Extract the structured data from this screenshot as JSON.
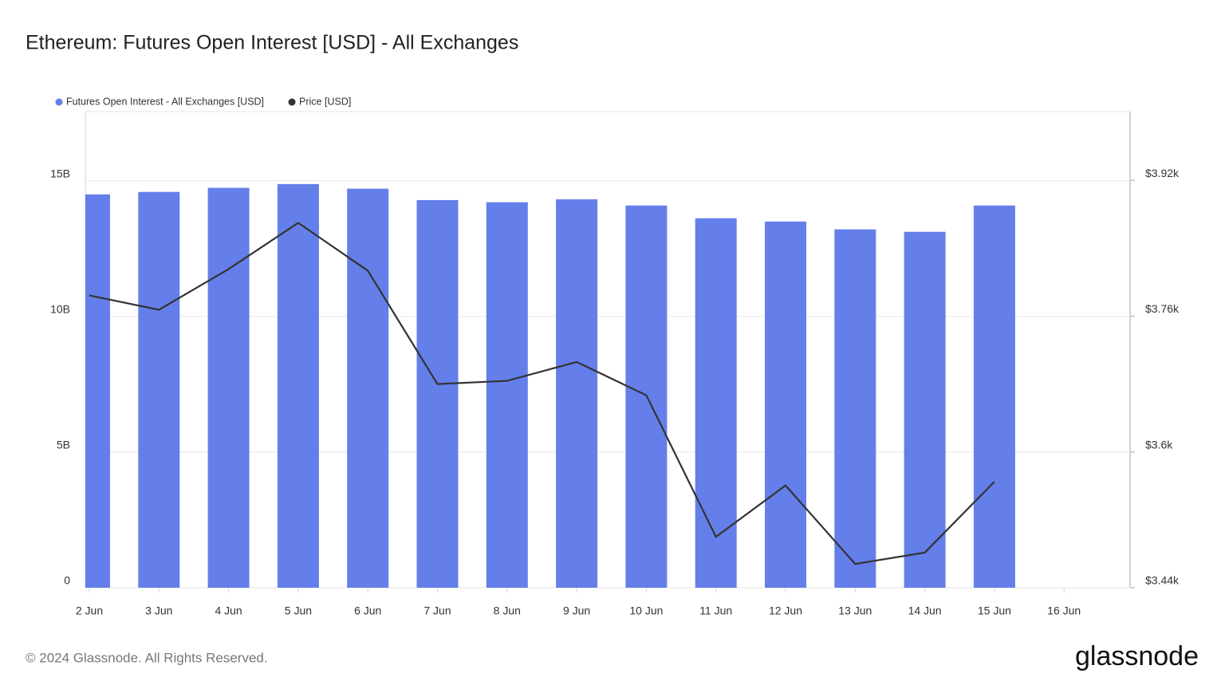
{
  "chart_data": {
    "type": "bar-line",
    "title": "Ethereum: Futures Open Interest [USD] - All Exchanges",
    "categories": [
      "2 Jun",
      "3 Jun",
      "4 Jun",
      "5 Jun",
      "6 Jun",
      "7 Jun",
      "8 Jun",
      "9 Jun",
      "10 Jun",
      "11 Jun",
      "12 Jun",
      "13 Jun",
      "14 Jun",
      "15 Jun",
      "16 Jun"
    ],
    "series": [
      {
        "name": "Futures Open Interest - All Exchanges [USD]",
        "type": "bar",
        "color": "#647fea",
        "values": [
          14500000000,
          14590000000,
          14740000000,
          14880000000,
          14710000000,
          14290000000,
          14210000000,
          14320000000,
          14090000000,
          13620000000,
          13500000000,
          13210000000,
          13120000000,
          14090000000,
          null
        ]
      },
      {
        "name": "Price [USD]",
        "type": "line",
        "axis": "y2",
        "color": "#333333",
        "values": [
          3784.5,
          3767.5,
          3815.5,
          3870,
          3813.6,
          3680,
          3683.8,
          3706,
          3666.8,
          3500,
          3560.5,
          3468,
          3481.4,
          3565,
          null
        ]
      }
    ],
    "ylim": [
      0,
      17550000000
    ],
    "yticks": [
      0,
      {
        "value": 5000000000,
        "label": "5B"
      },
      {
        "value": 10000000000,
        "label": "10B"
      },
      {
        "value": 15000000000,
        "label": "15B"
      }
    ],
    "y2lim": [
      3440,
      4001
    ],
    "y2ticks": [
      {
        "value": 3440,
        "label": "$3.44k"
      },
      {
        "value": 3600,
        "label": "$3.6k"
      },
      {
        "value": 3760,
        "label": "$3.76k"
      },
      {
        "value": 3920,
        "label": "$3.92k"
      }
    ],
    "grid": true,
    "legend": "top-left"
  },
  "footer": {
    "copyright": "© 2024 Glassnode. All Rights Reserved.",
    "logo": "glassnode"
  }
}
